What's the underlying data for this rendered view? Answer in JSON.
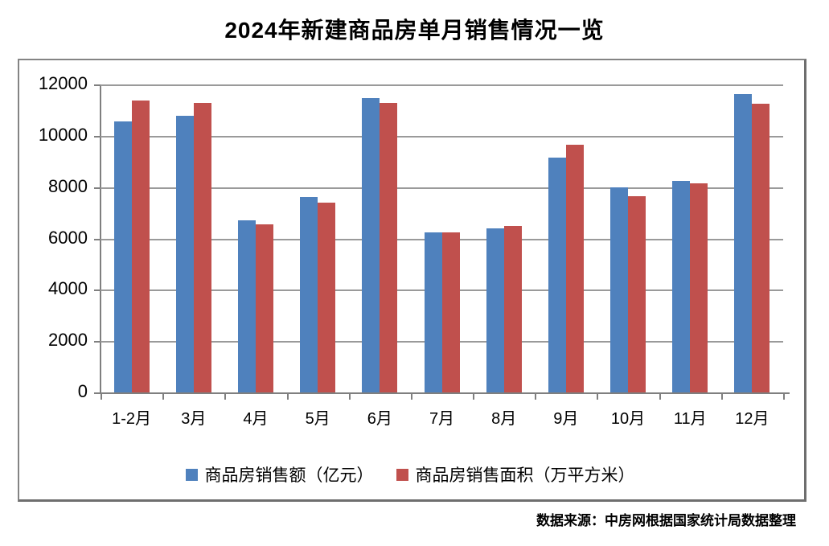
{
  "title": "2024年新建商品房单月销售情况一览",
  "source_note": "数据来源：中房网根据国家统计局数据整理",
  "colors": {
    "sales_blue": "#4F81BD",
    "area_red": "#C0504D",
    "gridline": "#9a9a9a",
    "axis": "#7f7f7f",
    "panel_border": "#848484",
    "text": "#000000",
    "background": "#ffffff"
  },
  "chart_data": {
    "type": "bar",
    "title": "2024年新建商品房单月销售情况一览",
    "categories": [
      "1-2月",
      "3月",
      "4月",
      "5月",
      "6月",
      "7月",
      "8月",
      "9月",
      "10月",
      "11月",
      "12月"
    ],
    "series": [
      {
        "name": "商品房销售额（亿元）",
        "color": "#4F81BD",
        "values": [
          10560,
          10780,
          6690,
          7600,
          11470,
          6220,
          6400,
          9160,
          8000,
          8250,
          11630
        ]
      },
      {
        "name": "商品房销售面积（万平方米）",
        "color": "#C0504D",
        "values": [
          11380,
          11280,
          6560,
          7380,
          11280,
          6250,
          6470,
          9660,
          7630,
          8160,
          11250
        ]
      }
    ],
    "xlabel": "",
    "ylabel": "",
    "ylim": [
      0,
      12000
    ],
    "yticks": [
      0,
      2000,
      4000,
      6000,
      8000,
      10000,
      12000
    ],
    "grid": true,
    "legend_position": "bottom",
    "source": "数据来源：中房网根据国家统计局数据整理"
  }
}
